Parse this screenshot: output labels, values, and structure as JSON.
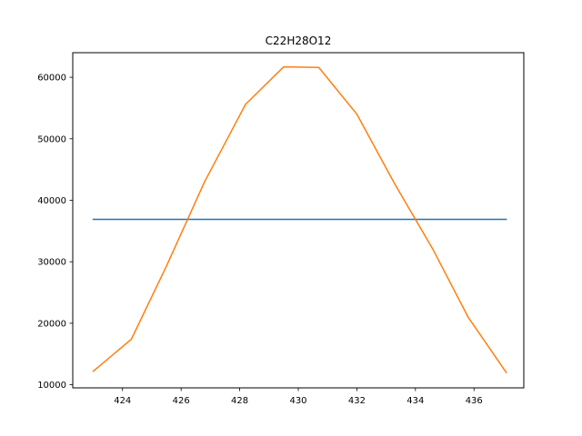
{
  "chart_data": {
    "type": "line",
    "title": "C22H28O12",
    "xlabel": "",
    "ylabel": "",
    "xlim": [
      422.3,
      437.7
    ],
    "ylim": [
      9500,
      64000
    ],
    "x_ticks": [
      424,
      426,
      428,
      430,
      432,
      434,
      436
    ],
    "x_tick_labels": [
      "424",
      "426",
      "428",
      "430",
      "432",
      "434",
      "436"
    ],
    "y_ticks": [
      10000,
      20000,
      30000,
      40000,
      50000,
      60000
    ],
    "y_tick_labels": [
      "10000",
      "20000",
      "30000",
      "40000",
      "50000",
      "60000"
    ],
    "grid": false,
    "legend": "none",
    "series": [
      {
        "color": "#1f77b4",
        "x": [
          423.0,
          437.1
        ],
        "y": [
          36900,
          36900
        ]
      },
      {
        "color": "#ff7f0e",
        "x": [
          423.0,
          424.3,
          425.5,
          426.8,
          428.2,
          429.5,
          430.7,
          432.0,
          433.3,
          434.6,
          435.8,
          437.1
        ],
        "y": [
          12200,
          17400,
          29300,
          43000,
          55600,
          61700,
          61600,
          54000,
          42600,
          32000,
          21000,
          12000
        ]
      }
    ]
  }
}
